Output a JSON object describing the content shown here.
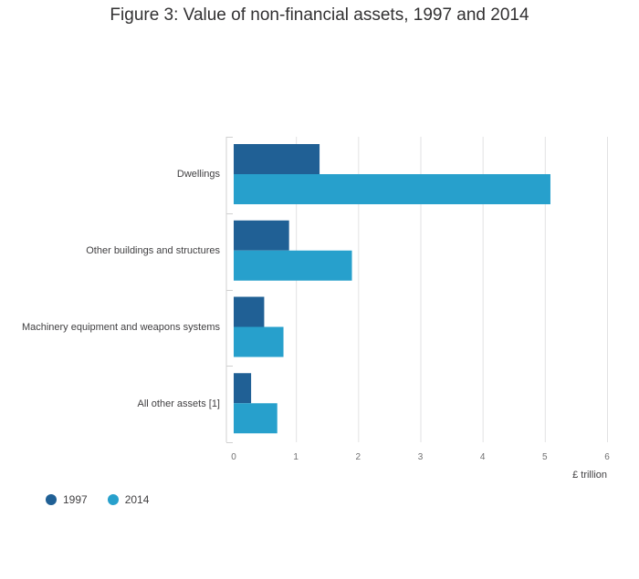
{
  "chart_data": {
    "type": "bar",
    "orientation": "horizontal",
    "title": "Figure 3: Value of non-financial assets, 1997 and 2014",
    "categories": [
      "Dwellings",
      "Other buildings and structures",
      "Machinery equipment and weapons systems",
      "All other assets [1]"
    ],
    "series": [
      {
        "name": "1997",
        "values": [
          1.38,
          0.89,
          0.49,
          0.28
        ],
        "color": "#206095"
      },
      {
        "name": "2014",
        "values": [
          5.09,
          1.9,
          0.8,
          0.7
        ],
        "color": "#27a0cc"
      }
    ],
    "xlabel": "£ trillion",
    "ylabel": "",
    "xlim": [
      0,
      6
    ],
    "xticks": [
      "0",
      "1",
      "2",
      "3",
      "4",
      "5",
      "6"
    ],
    "grid": true,
    "legend_position": "bottom-left"
  }
}
